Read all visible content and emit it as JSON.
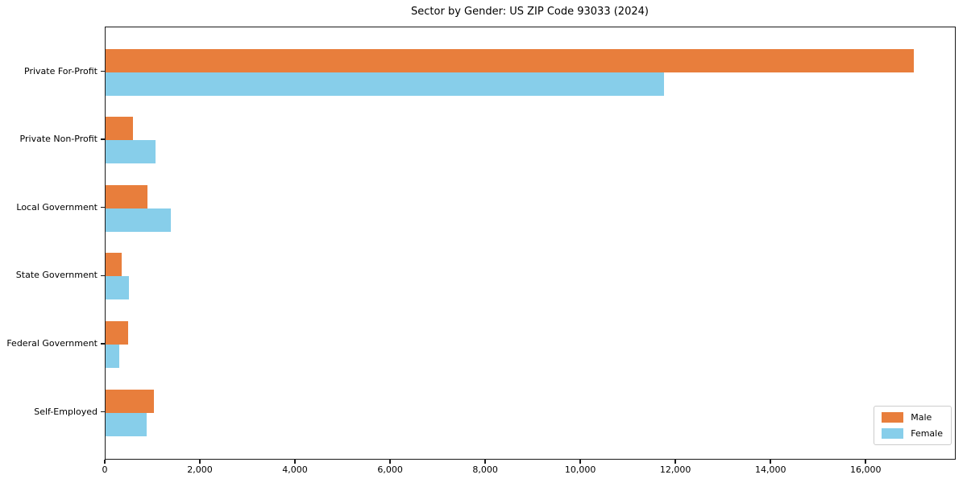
{
  "chart_data": {
    "type": "bar",
    "orientation": "horizontal",
    "title": "Sector by Gender: US ZIP Code 93033 (2024)",
    "categories": [
      "Private For-Profit",
      "Private Non-Profit",
      "Local Government",
      "State Government",
      "Federal Government",
      "Self-Employed"
    ],
    "series": [
      {
        "name": "Male",
        "color": "#e87e3c",
        "values": [
          17000,
          580,
          880,
          340,
          470,
          1010
        ]
      },
      {
        "name": "Female",
        "color": "#87ceea",
        "values": [
          11750,
          1050,
          1370,
          490,
          290,
          860
        ]
      }
    ],
    "xlim": [
      0,
      17860
    ],
    "xticks": [
      0,
      2000,
      4000,
      6000,
      8000,
      10000,
      12000,
      14000,
      16000
    ],
    "xtick_labels": [
      "0",
      "2,000",
      "4,000",
      "6,000",
      "8,000",
      "10,000",
      "12,000",
      "14,000",
      "16,000"
    ],
    "xlabel": "",
    "ylabel": "",
    "grid": false,
    "legend": {
      "position": "lower right",
      "entries": [
        "Male",
        "Female"
      ]
    },
    "frame_color": "#1a1a1a",
    "background_color": "#ffffff"
  }
}
